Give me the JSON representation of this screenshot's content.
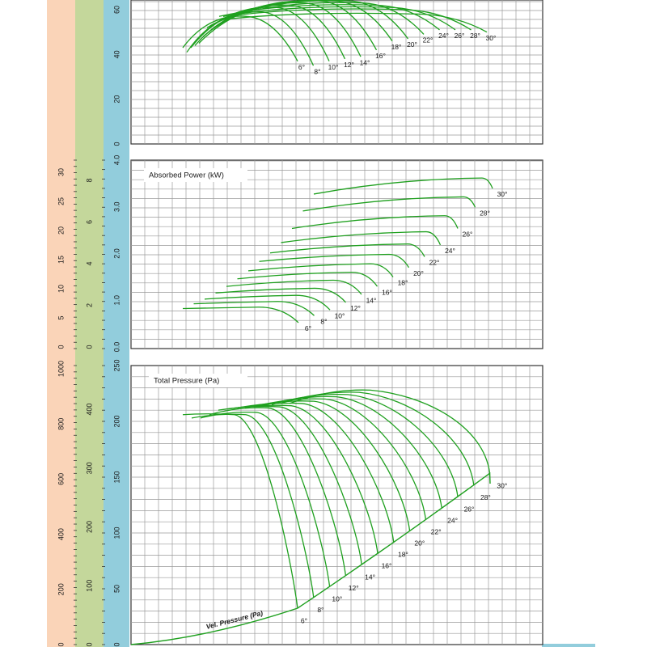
{
  "colors": {
    "band_peach": "#FAD4B8",
    "band_green": "#C4D79B",
    "band_blue": "#92CDDC",
    "grid": "#9a9a9a",
    "curve": "#1FA01F",
    "text": "#1a1a1a"
  },
  "chart_data": [
    {
      "type": "line",
      "panel": "efficiency",
      "title": "",
      "yaxis": {
        "ticks": [
          "0",
          "20",
          "40",
          "60"
        ],
        "range": [
          0,
          65
        ]
      },
      "angle_labels": [
        "6°",
        "8°",
        "10°",
        "12°",
        "14°",
        "16°",
        "18°",
        "20°",
        "22°",
        "24°",
        "26°",
        "28°",
        "30°"
      ],
      "series": [
        {
          "name": "6°",
          "peak": 57,
          "end": 37
        },
        {
          "name": "8°",
          "peak": 59,
          "end": 35
        },
        {
          "name": "10°",
          "peak": 61,
          "end": 37
        },
        {
          "name": "12°",
          "peak": 62,
          "end": 38
        },
        {
          "name": "14°",
          "peak": 63,
          "end": 39
        },
        {
          "name": "16°",
          "peak": 64,
          "end": 42
        },
        {
          "name": "18°",
          "peak": 64,
          "end": 46
        },
        {
          "name": "20°",
          "peak": 64,
          "end": 47
        },
        {
          "name": "22°",
          "peak": 63,
          "end": 49
        },
        {
          "name": "24°",
          "peak": 62,
          "end": 51
        },
        {
          "name": "26°",
          "peak": 61,
          "end": 51
        },
        {
          "name": "28°",
          "peak": 60,
          "end": 51
        },
        {
          "name": "30°",
          "peak": 58,
          "end": 50
        }
      ]
    },
    {
      "type": "line",
      "panel": "power",
      "title": "Absorbed Power (kW)",
      "yaxis": {
        "ticks": [
          "0.0",
          "1.0",
          "2.0",
          "3.0",
          "4.0"
        ],
        "range": [
          0,
          4
        ]
      },
      "aux_axis_green": {
        "ticks": [
          "0",
          "2",
          "4",
          "6",
          "8"
        ]
      },
      "aux_axis_peach": {
        "ticks": [
          "0",
          "5",
          "10",
          "15",
          "20",
          "25",
          "30"
        ]
      },
      "angle_labels": [
        "6°",
        "8°",
        "10°",
        "12°",
        "14°",
        "16°",
        "18°",
        "20°",
        "22°",
        "24°",
        "26°",
        "28°",
        "30°"
      ],
      "series": [
        {
          "name": "6°",
          "start": 0.85,
          "flat": 0.88,
          "end": 0.55
        },
        {
          "name": "8°",
          "start": 0.95,
          "flat": 1.0,
          "end": 0.7
        },
        {
          "name": "10°",
          "start": 1.05,
          "flat": 1.13,
          "end": 0.82
        },
        {
          "name": "12°",
          "start": 1.18,
          "flat": 1.28,
          "end": 0.98
        },
        {
          "name": "14°",
          "start": 1.32,
          "flat": 1.45,
          "end": 1.15
        },
        {
          "name": "16°",
          "start": 1.48,
          "flat": 1.62,
          "end": 1.32
        },
        {
          "name": "18°",
          "start": 1.65,
          "flat": 1.8,
          "end": 1.52
        },
        {
          "name": "20°",
          "start": 1.85,
          "flat": 2.0,
          "end": 1.72
        },
        {
          "name": "22°",
          "start": 2.03,
          "flat": 2.22,
          "end": 1.95
        },
        {
          "name": "24°",
          "start": 2.25,
          "flat": 2.48,
          "end": 2.2
        },
        {
          "name": "26°",
          "start": 2.55,
          "flat": 2.82,
          "end": 2.55
        },
        {
          "name": "28°",
          "start": 2.92,
          "flat": 3.22,
          "end": 3.0
        },
        {
          "name": "30°",
          "start": 3.28,
          "flat": 3.62,
          "end": 3.4
        }
      ]
    },
    {
      "type": "line",
      "panel": "pressure",
      "title": "Total Pressure (Pa)",
      "yaxis": {
        "ticks": [
          "0",
          "50",
          "100",
          "150",
          "200",
          "250"
        ],
        "range": [
          0,
          250
        ]
      },
      "aux_axis_green": {
        "ticks": [
          "0",
          "100",
          "200",
          "300",
          "400"
        ]
      },
      "aux_axis_peach": {
        "ticks": [
          "0",
          "200",
          "400",
          "600",
          "800",
          "1000"
        ]
      },
      "vel_label": "Vel. Pressure (Pa)",
      "angle_labels": [
        "6°",
        "8°",
        "10°",
        "12°",
        "14°",
        "16°",
        "18°",
        "20°",
        "22°",
        "24°",
        "26°",
        "28°",
        "30°"
      ],
      "series": [
        {
          "name": "6°",
          "start": 206,
          "peak": 206
        },
        {
          "name": "8°",
          "start": 203,
          "peak": 206
        },
        {
          "name": "10°",
          "start": 203,
          "peak": 208
        },
        {
          "name": "12°",
          "start": 206,
          "peak": 212
        },
        {
          "name": "14°",
          "start": 210,
          "peak": 213
        },
        {
          "name": "16°",
          "start": 211,
          "peak": 214
        },
        {
          "name": "18°",
          "start": 212,
          "peak": 216
        },
        {
          "name": "20°",
          "start": 212,
          "peak": 218
        },
        {
          "name": "22°",
          "start": 213,
          "peak": 220
        },
        {
          "name": "24°",
          "start": 214,
          "peak": 222
        },
        {
          "name": "26°",
          "start": 215,
          "peak": 224
        },
        {
          "name": "28°",
          "start": 216,
          "peak": 226
        },
        {
          "name": "30°",
          "start": 216,
          "peak": 228
        }
      ]
    }
  ]
}
